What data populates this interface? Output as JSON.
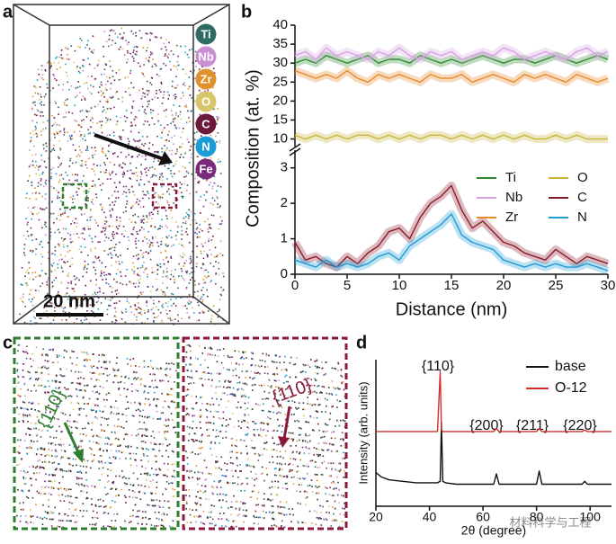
{
  "panels": {
    "labels": [
      "a",
      "b",
      "c",
      "d"
    ],
    "a": {
      "elements": [
        "Ti",
        "Nb",
        "Zr",
        "O",
        "C",
        "N",
        "Fe"
      ],
      "scale_bar": "20 nm"
    },
    "c": {
      "left_label": "{110}",
      "right_label": "{110}"
    },
    "watermark": "材料科学与工程"
  },
  "chart_data": [
    {
      "type": "line",
      "ylabel": "Composition (at. %)",
      "xlim": [
        0,
        30
      ],
      "ylim": [
        8,
        40
      ],
      "yticks": [
        10,
        15,
        20,
        25,
        30,
        35,
        40
      ],
      "x": [
        0,
        1,
        2,
        3,
        4,
        5,
        6,
        7,
        8,
        9,
        10,
        11,
        12,
        13,
        14,
        15,
        16,
        17,
        18,
        19,
        20,
        21,
        22,
        23,
        24,
        25,
        26,
        27,
        28,
        29,
        30
      ],
      "series": [
        {
          "name": "Ti",
          "color": "#2e8b2e",
          "values": [
            30,
            31,
            30,
            32,
            31,
            30,
            31,
            32,
            30,
            31,
            31,
            30,
            32,
            31,
            30,
            31,
            30,
            31,
            32,
            31,
            30,
            31,
            31,
            30,
            31,
            32,
            31,
            30,
            31,
            32,
            31
          ]
        },
        {
          "name": "Nb",
          "color": "#d7a2e4",
          "values": [
            32,
            33,
            31,
            34,
            32,
            33,
            32,
            31,
            33,
            32,
            34,
            32,
            31,
            33,
            32,
            33,
            31,
            32,
            33,
            32,
            34,
            33,
            31,
            32,
            33,
            32,
            31,
            33,
            34,
            32,
            33
          ]
        },
        {
          "name": "Zr",
          "color": "#e8892b",
          "values": [
            28,
            27,
            26,
            27,
            26,
            28,
            26,
            25,
            27,
            26,
            27,
            26,
            25,
            27,
            26,
            26,
            27,
            25,
            26,
            27,
            26,
            25,
            27,
            26,
            27,
            26,
            25,
            27,
            26,
            25,
            26
          ]
        },
        {
          "name": "O",
          "color": "#c8b53a",
          "values": [
            11,
            10,
            11,
            10,
            11,
            10,
            11,
            11,
            10,
            11,
            10,
            11,
            10,
            11,
            11,
            10,
            11,
            10,
            11,
            10,
            11,
            10,
            11,
            10,
            10,
            11,
            10,
            11,
            10,
            10,
            10
          ]
        }
      ]
    },
    {
      "type": "line",
      "xlabel": "Distance (nm)",
      "xlim": [
        0,
        30
      ],
      "xticks": [
        0,
        5,
        10,
        15,
        20,
        25,
        30
      ],
      "ylim": [
        0,
        3.5
      ],
      "yticks": [
        0,
        1,
        2,
        3
      ],
      "x": [
        0,
        1,
        2,
        3,
        4,
        5,
        6,
        7,
        8,
        9,
        10,
        11,
        12,
        13,
        14,
        15,
        16,
        17,
        18,
        19,
        20,
        21,
        22,
        23,
        24,
        25,
        26,
        27,
        28,
        29,
        30
      ],
      "series": [
        {
          "name": "C",
          "color": "#8b1a2a",
          "values": [
            0.9,
            0.4,
            0.5,
            0.3,
            0.2,
            0.5,
            0.3,
            0.6,
            0.8,
            1.2,
            1.3,
            1.0,
            1.6,
            2.0,
            2.2,
            2.5,
            1.8,
            1.3,
            1.5,
            1.2,
            0.9,
            0.8,
            0.6,
            0.5,
            0.4,
            0.7,
            0.5,
            0.3,
            0.5,
            0.4,
            0.3
          ]
        },
        {
          "name": "N",
          "color": "#1f9bd6",
          "values": [
            0.4,
            0.3,
            0.2,
            0.4,
            0.2,
            0.3,
            0.2,
            0.3,
            0.5,
            0.6,
            0.4,
            0.8,
            1.0,
            1.2,
            1.4,
            1.7,
            1.1,
            0.9,
            0.8,
            0.7,
            0.4,
            0.3,
            0.2,
            0.3,
            0.2,
            0.3,
            0.2,
            0.2,
            0.3,
            0.2,
            0.1
          ]
        }
      ]
    },
    {
      "type": "line",
      "xlabel": "2θ (degree)",
      "ylabel": "Intensity (arb. units)",
      "xlim": [
        20,
        108
      ],
      "xticks": [
        20,
        40,
        60,
        80,
        100
      ],
      "ylim": [
        0,
        100
      ],
      "annotations": [
        "{110}",
        "{200}",
        "{211}",
        "{220}"
      ],
      "x": [
        20,
        22,
        25,
        30,
        35,
        40,
        43,
        44,
        44.5,
        45,
        46,
        50,
        55,
        62,
        64,
        65,
        66,
        70,
        78,
        80,
        81,
        82,
        85,
        95,
        97,
        98,
        99,
        108
      ],
      "series": [
        {
          "name": "base",
          "color": "#111111",
          "values": [
            23,
            20,
            18,
            17,
            16,
            16,
            16,
            17,
            57,
            17,
            16,
            15,
            15,
            15,
            15,
            22,
            15,
            15,
            15,
            15,
            24,
            15,
            15,
            15,
            15,
            17,
            15,
            15
          ]
        },
        {
          "name": "O-12",
          "color": "#d03030",
          "values": [
            51,
            51,
            51,
            51,
            51,
            51,
            51,
            92,
            52,
            51,
            51,
            51,
            51,
            51,
            51,
            53,
            51,
            51,
            51,
            51,
            53,
            51,
            51,
            51,
            51,
            52,
            51,
            51
          ]
        }
      ]
    }
  ]
}
